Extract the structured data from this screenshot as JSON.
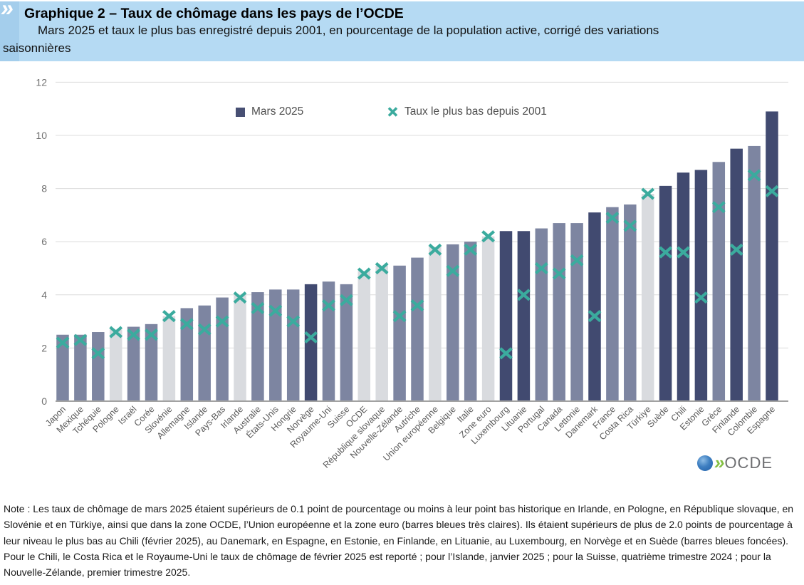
{
  "header": {
    "chevron_icon": "»",
    "title": "Graphique 2 – Taux de chômage dans les pays de l’OCDE",
    "subtitle": "Mars 2025 et taux le plus bas enregistré depuis 2001, en pourcentage de la population active, corrigé des variations\nsaisonnières"
  },
  "legend": {
    "bar_label": "Mars 2025",
    "marker_label": "Taux le plus bas depuis 2001"
  },
  "chart_data": {
    "type": "bar",
    "title": "Graphique 2 – Taux de chômage dans les pays de l’OCDE",
    "subtitle": "Mars 2025 et taux le plus bas enregistré depuis 2001, en pourcentage de la population active, corrigé des variations saisonnières",
    "xlabel": "",
    "ylabel": "",
    "ylim": [
      0,
      12
    ],
    "yticks": [
      0,
      2,
      4,
      6,
      8,
      10,
      12
    ],
    "grid": true,
    "legend_position": "top",
    "categories": [
      "Japon",
      "Mexique",
      "Tchéquie",
      "Pologne",
      "Israël",
      "Corée",
      "Slovénie",
      "Allemagne",
      "Islande",
      "Pays-Bas",
      "Irlande",
      "Australie",
      "États-Unis",
      "Hongrie",
      "Norvège",
      "Royaume-Uni",
      "Suisse",
      "OCDE",
      "République slovaque",
      "Nouvelle-Zélande",
      "Autriche",
      "Union européenne",
      "Belgique",
      "Italie",
      "Zone euro",
      "Luxembourg",
      "Lituanie",
      "Portugal",
      "Canada",
      "Lettonie",
      "Danemark",
      "France",
      "Costa Rica",
      "Türkiye",
      "Suède",
      "Chili",
      "Estonie",
      "Grèce",
      "Finlande",
      "Colombie",
      "Espagne"
    ],
    "series": [
      {
        "name": "Mars 2025",
        "type": "bar",
        "values": [
          2.5,
          2.5,
          2.6,
          2.7,
          2.8,
          2.9,
          3.2,
          3.5,
          3.6,
          3.9,
          4.0,
          4.1,
          4.2,
          4.2,
          4.4,
          4.5,
          4.4,
          4.9,
          5.1,
          5.1,
          5.4,
          5.8,
          5.9,
          6.0,
          6.2,
          6.4,
          6.4,
          6.5,
          6.7,
          6.7,
          7.1,
          7.3,
          7.4,
          7.8,
          8.1,
          8.6,
          8.7,
          9.0,
          9.5,
          9.6,
          10.9
        ]
      },
      {
        "name": "Taux le plus bas depuis 2001",
        "type": "scatter-x",
        "values": [
          2.2,
          2.3,
          1.8,
          2.6,
          2.5,
          2.5,
          3.2,
          2.9,
          2.7,
          3.0,
          3.9,
          3.5,
          3.4,
          3.0,
          2.4,
          3.6,
          3.8,
          4.8,
          5.0,
          3.2,
          3.6,
          5.7,
          4.9,
          5.7,
          6.2,
          1.8,
          4.0,
          5.0,
          4.8,
          5.3,
          3.2,
          6.9,
          6.6,
          7.8,
          5.6,
          5.6,
          3.9,
          7.3,
          5.7,
          8.5,
          7.9
        ]
      }
    ],
    "bar_styles": [
      "regular",
      "regular",
      "regular",
      "light",
      "regular",
      "regular",
      "light",
      "regular",
      "regular",
      "regular",
      "light",
      "regular",
      "regular",
      "regular",
      "dark",
      "regular",
      "regular",
      "light",
      "light",
      "regular",
      "regular",
      "light",
      "regular",
      "regular",
      "light",
      "dark",
      "dark",
      "regular",
      "regular",
      "regular",
      "dark",
      "regular",
      "regular",
      "light",
      "dark",
      "dark",
      "dark",
      "regular",
      "dark",
      "regular",
      "dark"
    ],
    "colors": {
      "bar_regular": "#7d85a1",
      "bar_light": "#d9dbdf",
      "bar_dark": "#414a70",
      "legend_square": "#474f73",
      "marker": "#3bab9e",
      "gridline": "#dcdcdc",
      "axis": "#a2a2a2"
    }
  },
  "logo": {
    "chevrons": "»",
    "text": "OCDE"
  },
  "note": {
    "text": "Note : Les taux de chômage de mars 2025 étaient supérieurs de 0.1 point de pourcentage ou moins à leur point bas historique en Irlande, en Pologne, en République slovaque, en Slovénie et en Türkiye, ainsi que dans la zone OCDE, l’Union européenne et la zone euro (barres bleues très claires). Ils étaient supérieurs de plus de 2.0 points de pourcentage à leur niveau le plus bas au Chili (février 2025), au Danemark, en Espagne, en Estonie, en Finlande, en Lituanie, au Luxembourg, en Norvège et en Suède (barres bleues foncées). Pour le Chili, le Costa Rica et le Royaume-Uni le taux de chômage de février 2025 est reporté ; pour l’Islande, janvier 2025 ; pour la Suisse, quatrième trimestre 2024 ; pour la Nouvelle-Zélande, premier trimestre 2025."
  }
}
